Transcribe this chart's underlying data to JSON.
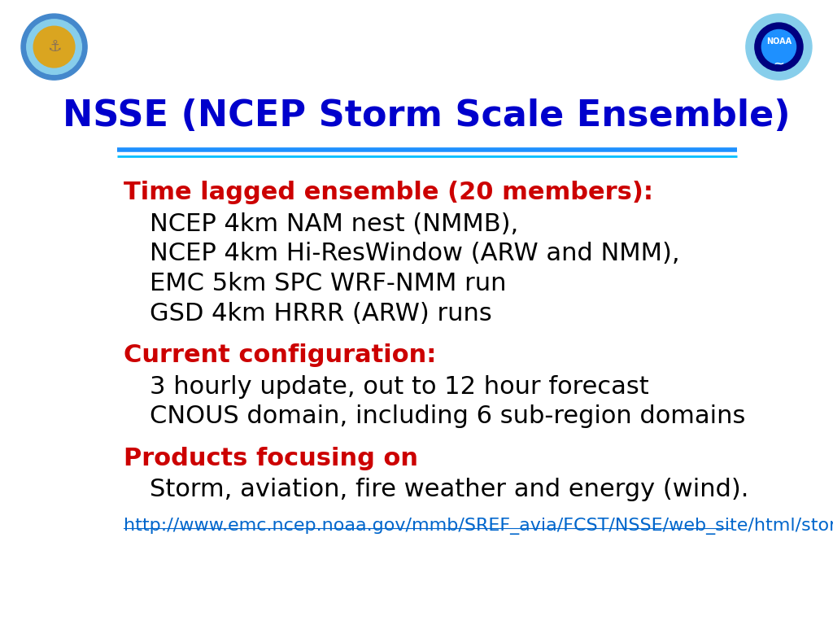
{
  "title": "NSSE (NCEP Storm Scale Ensemble)",
  "title_color": "#0000CC",
  "title_fontsize": 32,
  "background_color": "#ffffff",
  "header_line_color1": "#1E90FF",
  "header_line_color2": "#00BFFF",
  "sections": [
    {
      "heading": "Time lagged ensemble (20 members):",
      "heading_color": "#CC0000",
      "heading_fontsize": 22,
      "items": [
        "NCEP 4km NAM nest (NMMB),",
        "NCEP 4km Hi-ResWindow (ARW and NMM),",
        "EMC 5km SPC WRF-NMM run",
        "GSD 4km HRRR (ARW) runs"
      ],
      "item_color": "#000000",
      "item_fontsize": 22,
      "indent": 0.07
    },
    {
      "heading": "Current configuration:",
      "heading_color": "#CC0000",
      "heading_fontsize": 22,
      "items": [
        "3 hourly update, out to 12 hour forecast",
        "CNOUS domain, including 6 sub-region domains"
      ],
      "item_color": "#000000",
      "item_fontsize": 22,
      "indent": 0.07
    },
    {
      "heading": "Products focusing on",
      "heading_color": "#CC0000",
      "heading_fontsize": 22,
      "items": [
        "Storm, aviation, fire weather and energy (wind)."
      ],
      "item_color": "#000000",
      "item_fontsize": 22,
      "indent": 0.07
    }
  ],
  "url": "http://www.emc.ncep.noaa.gov/mmb/SREF_avia/FCST/NSSE/web_site/html/storm.html",
  "url_color": "#0066CC",
  "url_fontsize": 16,
  "left_logo": {
    "outer_color": "#4488CC",
    "mid_color": "#87CEEB",
    "inner_color": "#DAA520",
    "text_color": "#8B7355"
  },
  "right_logo": {
    "outer_color": "#87CEEB",
    "mid_color": "#000080",
    "inner_color": "#1E90FF",
    "label": "NOAA"
  }
}
